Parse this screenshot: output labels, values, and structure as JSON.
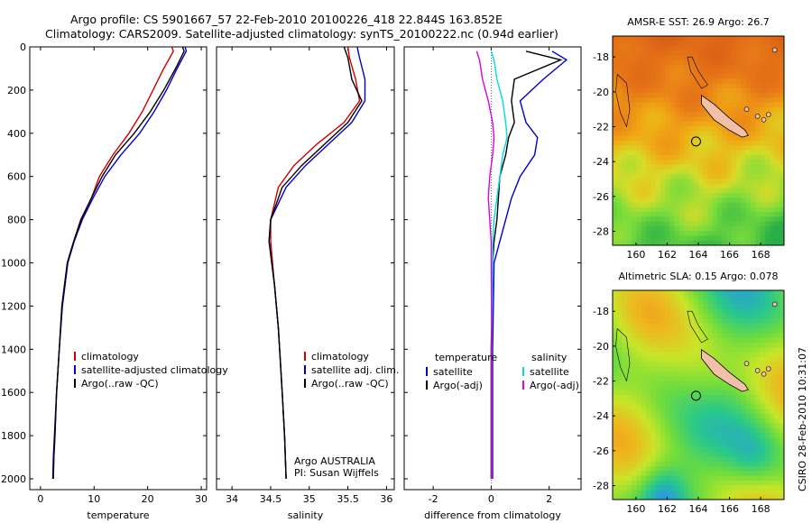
{
  "header": {
    "title_line1": "Argo profile: CS 5901667_57 22-Feb-2010 20100226_418 22.844S 163.852E",
    "title_line2": "Climatology: CARS2009. Satellite-adjusted climatology: synTS_20100222.nc (0.94d earlier)"
  },
  "colors": {
    "climatology": "#d00000",
    "satellite": "#0000cc",
    "argo": "#000000",
    "satellite_diff": "#00dddd",
    "argo_diff": "#e000e0"
  },
  "chart_data": [
    {
      "type": "line",
      "id": "temperature",
      "title": "",
      "xlabel": "temperature",
      "ylabel": "",
      "xlim": [
        -2,
        31
      ],
      "ylim": [
        2050,
        0
      ],
      "xticks": [
        0,
        10,
        20,
        30
      ],
      "yticks": [
        0,
        200,
        400,
        600,
        800,
        1000,
        1200,
        1400,
        1600,
        1800,
        2000
      ],
      "legend": {
        "placement": "lower-right",
        "entries": [
          "climatology",
          "satellite-adjusted climatology",
          "Argo(..raw -QC)"
        ]
      },
      "series": [
        {
          "name": "climatology",
          "color_key": "climatology",
          "x": [
            24.5,
            24.8,
            23,
            21,
            19,
            16.5,
            13.5,
            11,
            9.5,
            7.5,
            6.2,
            5,
            4,
            3.5,
            3,
            2.7,
            2.5,
            2.4
          ],
          "y": [
            0,
            20,
            100,
            200,
            300,
            400,
            500,
            600,
            700,
            800,
            900,
            1000,
            1200,
            1400,
            1600,
            1800,
            1900,
            2000
          ]
        },
        {
          "name": "satellite-adjusted climatology",
          "color_key": "satellite",
          "x": [
            27,
            27.2,
            25.5,
            23.5,
            21.2,
            18.5,
            15,
            12,
            9.8,
            7.8,
            6.3,
            5.1,
            4.1,
            3.5,
            3,
            2.6,
            2.4,
            2.3
          ],
          "y": [
            0,
            20,
            100,
            200,
            300,
            400,
            500,
            600,
            700,
            800,
            900,
            1000,
            1200,
            1400,
            1600,
            1800,
            1900,
            2000
          ]
        },
        {
          "name": "Argo(..raw -QC)",
          "color_key": "argo",
          "x": [
            26.5,
            26.8,
            25.2,
            23,
            20.5,
            17.5,
            14,
            11.5,
            9.5,
            7.6,
            6.2,
            5,
            4,
            3.5,
            3,
            2.7,
            2.5,
            2.4
          ],
          "y": [
            0,
            20,
            100,
            200,
            300,
            400,
            500,
            600,
            700,
            800,
            900,
            1000,
            1200,
            1400,
            1600,
            1800,
            1900,
            2000
          ]
        }
      ]
    },
    {
      "type": "line",
      "id": "salinity",
      "title": "",
      "xlabel": "salinity",
      "ylabel": "",
      "xlim": [
        33.8,
        36.1
      ],
      "ylim": [
        2050,
        0
      ],
      "xticks": [
        34,
        34.5,
        35,
        35.5,
        36
      ],
      "xtick_labels": [
        "34",
        "34.5",
        "35",
        "35.5",
        "36"
      ],
      "legend": {
        "placement": "lower-right",
        "entries": [
          "climatology",
          "satellite adj. clim.",
          "Argo(..raw -QC)"
        ]
      },
      "annotations": [
        "Argo AUSTRALIA",
        "PI: Susan Wijffels"
      ],
      "series": [
        {
          "name": "climatology",
          "color_key": "climatology",
          "x": [
            35.5,
            35.52,
            35.6,
            35.65,
            35.45,
            35.1,
            34.8,
            34.6,
            34.5,
            34.5,
            34.55,
            34.6,
            34.65,
            34.68,
            34.7
          ],
          "y": [
            0,
            50,
            150,
            250,
            350,
            450,
            550,
            650,
            800,
            900,
            1100,
            1300,
            1600,
            1800,
            2000
          ]
        },
        {
          "name": "satellite adj. clim.",
          "color_key": "satellite",
          "x": [
            35.62,
            35.65,
            35.72,
            35.72,
            35.55,
            35.25,
            34.95,
            34.7,
            34.5,
            34.48,
            34.55,
            34.6,
            34.65,
            34.68,
            34.7
          ],
          "y": [
            0,
            50,
            150,
            250,
            350,
            450,
            550,
            650,
            800,
            900,
            1100,
            1300,
            1600,
            1800,
            2000
          ]
        },
        {
          "name": "Argo(..raw -QC)",
          "color_key": "argo",
          "x": [
            35.45,
            35.5,
            35.55,
            35.68,
            35.5,
            35.2,
            34.9,
            34.65,
            34.5,
            34.48,
            34.55,
            34.6,
            34.65,
            34.68,
            34.7
          ],
          "y": [
            0,
            50,
            150,
            250,
            350,
            450,
            550,
            650,
            800,
            900,
            1100,
            1300,
            1600,
            1800,
            2000
          ]
        }
      ]
    },
    {
      "type": "line",
      "id": "difference",
      "title": "",
      "xlabel": "difference from climatology",
      "ylabel": "",
      "xlim": [
        -3,
        3.1
      ],
      "ylim": [
        2050,
        0
      ],
      "xticks": [
        -2,
        0,
        2
      ],
      "legend": {
        "placement": "lower",
        "groups": [
          {
            "heading": "temperature",
            "entries": [
              "satellite",
              "Argo(-adj)"
            ]
          },
          {
            "heading": "salinity",
            "entries": [
              "satellite",
              "Argo(-adj)"
            ]
          }
        ]
      },
      "series": [
        {
          "name": "temperature satellite",
          "color_key": "satellite",
          "x": [
            2.1,
            2.6,
            1.8,
            1.0,
            1.2,
            1.6,
            1.5,
            1.0,
            0.7,
            0.5,
            0.3,
            0.1,
            0.05,
            0.05,
            0.05
          ],
          "y": [
            20,
            60,
            150,
            250,
            350,
            420,
            500,
            600,
            700,
            800,
            900,
            1000,
            1400,
            1800,
            2000
          ]
        },
        {
          "name": "temperature Argo(-adj)",
          "color_key": "argo",
          "x": [
            1.2,
            2.4,
            0.8,
            0.7,
            0.8,
            0.6,
            0.5,
            0.3,
            0.25,
            0.2,
            0.1,
            0.05,
            0,
            0,
            0
          ],
          "y": [
            20,
            60,
            150,
            250,
            350,
            420,
            500,
            600,
            700,
            800,
            900,
            1000,
            1400,
            1800,
            2000
          ]
        },
        {
          "name": "salinity satellite",
          "color_key": "satellite_diff",
          "x": [
            0,
            0.1,
            0.2,
            0.4,
            0.5,
            0.55,
            0.4,
            0.3,
            0.2,
            0.1,
            0.05,
            0.05,
            0.02,
            0.02,
            0.02
          ],
          "y": [
            20,
            60,
            150,
            250,
            350,
            420,
            500,
            600,
            700,
            800,
            900,
            1000,
            1400,
            1800,
            2000
          ]
        },
        {
          "name": "salinity Argo(-adj)",
          "color_key": "argo_diff",
          "x": [
            -0.5,
            -0.4,
            -0.3,
            -0.1,
            0.05,
            0.1,
            0.05,
            -0.05,
            -0.1,
            -0.05,
            0,
            0,
            0.02,
            0.02,
            0.02
          ],
          "y": [
            20,
            60,
            150,
            250,
            350,
            420,
            500,
            600,
            700,
            800,
            900,
            1000,
            1400,
            1800,
            2000
          ]
        }
      ]
    },
    {
      "type": "heatmap",
      "id": "sst-map",
      "title": "AMSR-E SST: 26.9 Argo: 26.7",
      "xlim": [
        158.5,
        169.5
      ],
      "ylim": [
        -28.8,
        -16.8
      ],
      "xticks": [
        160,
        162,
        164,
        166,
        168
      ],
      "yticks": [
        -18,
        -20,
        -22,
        -24,
        -26,
        -28
      ],
      "argo_position": {
        "lon": 163.852,
        "lat": -22.844
      }
    },
    {
      "type": "heatmap",
      "id": "sla-map",
      "title": "Altimetric SLA: 0.15 Argo: 0.078",
      "xlim": [
        158.5,
        169.5
      ],
      "ylim": [
        -28.8,
        -16.8
      ],
      "xticks": [
        160,
        162,
        164,
        166,
        168
      ],
      "yticks": [
        -18,
        -20,
        -22,
        -24,
        -26,
        -28
      ],
      "argo_position": {
        "lon": 163.852,
        "lat": -22.844
      }
    }
  ],
  "footer": {
    "stamp": "CSIRO 28-Feb-2010 10:31:07"
  }
}
